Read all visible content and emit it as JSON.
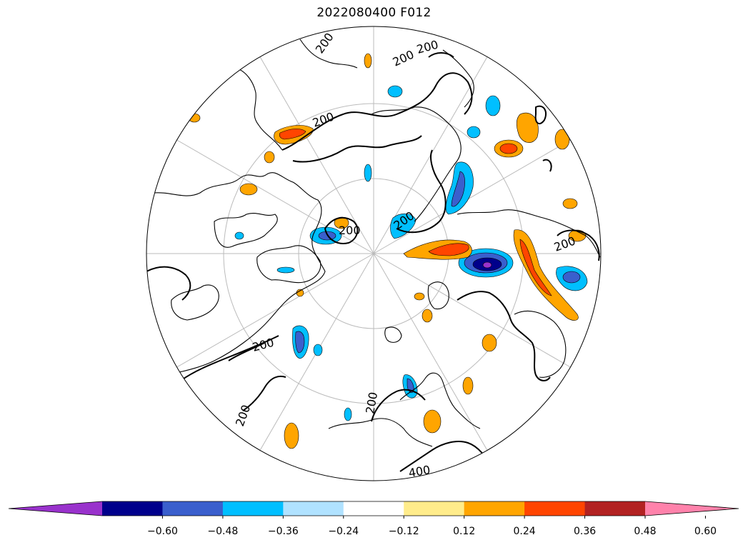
{
  "title": "2022080400 F012",
  "contour_labels": [
    "200",
    "200",
    "200",
    "200",
    "200",
    "200",
    "200",
    "200",
    "200",
    "200",
    "400"
  ],
  "colorbar": {
    "colors": [
      "#9932cc",
      "#00008b",
      "#3a5fcd",
      "#00bfff",
      "#b0e2ff",
      "#ffffff",
      "#ffec8b",
      "#ffa500",
      "#ff4500",
      "#b22222",
      "#ff82ab"
    ],
    "ticks": [
      "−0.60",
      "−0.48",
      "−0.36",
      "−0.24",
      "−0.12",
      "0.12",
      "0.24",
      "0.36",
      "0.48",
      "0.60"
    ],
    "extend": "both"
  },
  "colors": {
    "graticule": "#bbbbbb",
    "coastline": "#000000",
    "contour": "#000000"
  }
}
